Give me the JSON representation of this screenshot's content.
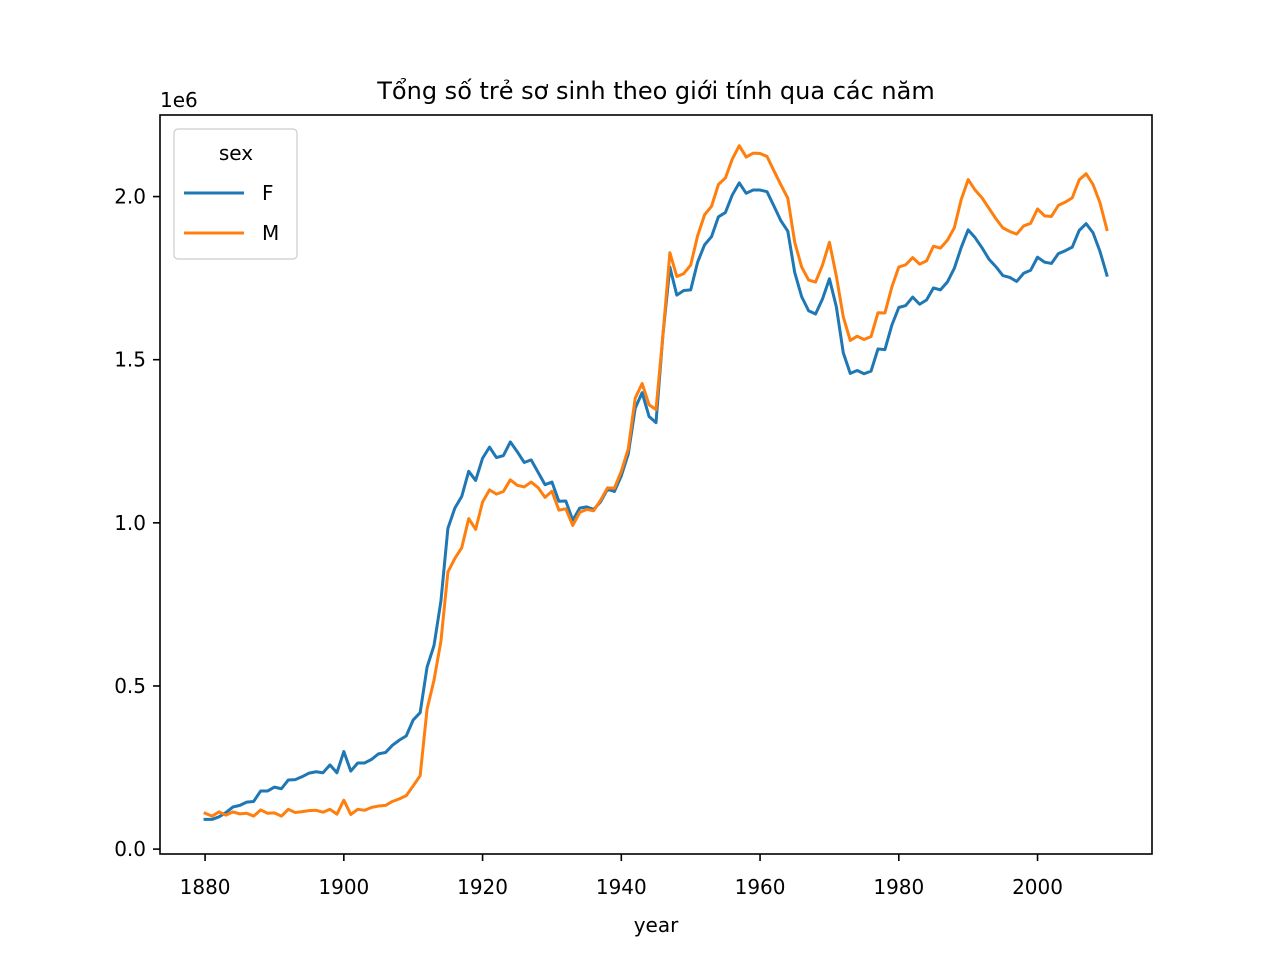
{
  "chart_data": {
    "type": "line",
    "title": "Tổng số trẻ sơ sinh theo giới tính qua các năm",
    "xlabel": "year",
    "ylabel": "",
    "y_offset_label": "1e6",
    "xlim": [
      1873.5,
      2016.5
    ],
    "ylim": [
      -0.015,
      2.25
    ],
    "x_ticks": [
      1880,
      1900,
      1920,
      1940,
      1960,
      1980,
      2000
    ],
    "x_tick_labels": [
      "1880",
      "1900",
      "1920",
      "1940",
      "1960",
      "1980",
      "2000"
    ],
    "y_ticks": [
      0.0,
      0.5,
      1.0,
      1.5,
      2.0
    ],
    "y_tick_labels": [
      "0.0",
      "0.5",
      "1.0",
      "1.5",
      "2.0"
    ],
    "grid": false,
    "legend": {
      "title": "sex",
      "placement": "upper-left"
    },
    "x": [
      1880,
      1881,
      1882,
      1883,
      1884,
      1885,
      1886,
      1887,
      1888,
      1889,
      1890,
      1891,
      1892,
      1893,
      1894,
      1895,
      1896,
      1897,
      1898,
      1899,
      1900,
      1901,
      1902,
      1903,
      1904,
      1905,
      1906,
      1907,
      1908,
      1909,
      1910,
      1911,
      1912,
      1913,
      1914,
      1915,
      1916,
      1917,
      1918,
      1919,
      1920,
      1921,
      1922,
      1923,
      1924,
      1925,
      1926,
      1927,
      1928,
      1929,
      1930,
      1931,
      1932,
      1933,
      1934,
      1935,
      1936,
      1937,
      1938,
      1939,
      1940,
      1941,
      1942,
      1943,
      1944,
      1945,
      1946,
      1947,
      1948,
      1949,
      1950,
      1951,
      1952,
      1953,
      1954,
      1955,
      1956,
      1957,
      1958,
      1959,
      1960,
      1961,
      1962,
      1963,
      1964,
      1965,
      1966,
      1967,
      1968,
      1969,
      1970,
      1971,
      1972,
      1973,
      1974,
      1975,
      1976,
      1977,
      1978,
      1979,
      1980,
      1981,
      1982,
      1983,
      1984,
      1985,
      1986,
      1987,
      1988,
      1989,
      1990,
      1991,
      1992,
      1993,
      1994,
      1995,
      1996,
      1997,
      1998,
      1999,
      2000,
      2001,
      2002,
      2003,
      2004,
      2005,
      2006,
      2007,
      2008,
      2009,
      2010
    ],
    "series": [
      {
        "name": "F",
        "color": "#1f77b4",
        "values": [
          0.091,
          0.091,
          0.099,
          0.112,
          0.129,
          0.134,
          0.144,
          0.146,
          0.178,
          0.178,
          0.19,
          0.185,
          0.212,
          0.213,
          0.222,
          0.233,
          0.237,
          0.234,
          0.258,
          0.234,
          0.299,
          0.239,
          0.264,
          0.264,
          0.275,
          0.292,
          0.296,
          0.318,
          0.334,
          0.347,
          0.396,
          0.418,
          0.558,
          0.624,
          0.761,
          0.983,
          1.045,
          1.081,
          1.158,
          1.13,
          1.198,
          1.232,
          1.2,
          1.206,
          1.248,
          1.218,
          1.185,
          1.193,
          1.155,
          1.117,
          1.125,
          1.066,
          1.067,
          1.008,
          1.045,
          1.049,
          1.041,
          1.064,
          1.103,
          1.096,
          1.144,
          1.211,
          1.351,
          1.399,
          1.326,
          1.307,
          1.577,
          1.784,
          1.698,
          1.712,
          1.714,
          1.799,
          1.852,
          1.877,
          1.938,
          1.951,
          2.005,
          2.042,
          2.01,
          2.02,
          2.02,
          2.015,
          1.971,
          1.926,
          1.894,
          1.767,
          1.693,
          1.65,
          1.64,
          1.686,
          1.748,
          1.662,
          1.521,
          1.458,
          1.467,
          1.457,
          1.465,
          1.533,
          1.531,
          1.606,
          1.66,
          1.666,
          1.692,
          1.67,
          1.683,
          1.72,
          1.714,
          1.738,
          1.78,
          1.844,
          1.898,
          1.874,
          1.843,
          1.808,
          1.785,
          1.758,
          1.752,
          1.74,
          1.765,
          1.774,
          1.814,
          1.799,
          1.795,
          1.825,
          1.834,
          1.845,
          1.896,
          1.917,
          1.889,
          1.832,
          1.759
        ]
      },
      {
        "name": "M",
        "color": "#ff7f0e",
        "values": [
          0.11,
          0.101,
          0.114,
          0.104,
          0.114,
          0.108,
          0.11,
          0.101,
          0.12,
          0.11,
          0.111,
          0.101,
          0.122,
          0.112,
          0.115,
          0.118,
          0.119,
          0.113,
          0.122,
          0.107,
          0.15,
          0.106,
          0.122,
          0.119,
          0.128,
          0.132,
          0.134,
          0.146,
          0.154,
          0.164,
          0.194,
          0.225,
          0.429,
          0.518,
          0.638,
          0.849,
          0.891,
          0.924,
          1.013,
          0.98,
          1.064,
          1.101,
          1.088,
          1.096,
          1.132,
          1.115,
          1.11,
          1.125,
          1.108,
          1.078,
          1.097,
          1.039,
          1.043,
          0.992,
          1.032,
          1.041,
          1.037,
          1.069,
          1.107,
          1.106,
          1.158,
          1.227,
          1.382,
          1.427,
          1.362,
          1.347,
          1.575,
          1.828,
          1.755,
          1.764,
          1.79,
          1.88,
          1.944,
          1.97,
          2.037,
          2.057,
          2.115,
          2.156,
          2.121,
          2.133,
          2.132,
          2.123,
          2.079,
          2.036,
          1.995,
          1.86,
          1.784,
          1.744,
          1.738,
          1.79,
          1.86,
          1.756,
          1.631,
          1.559,
          1.572,
          1.562,
          1.571,
          1.644,
          1.643,
          1.723,
          1.784,
          1.791,
          1.813,
          1.793,
          1.803,
          1.848,
          1.842,
          1.866,
          1.904,
          1.991,
          2.052,
          2.02,
          1.996,
          1.964,
          1.932,
          1.904,
          1.893,
          1.885,
          1.91,
          1.918,
          1.962,
          1.941,
          1.939,
          1.973,
          1.983,
          1.996,
          2.051,
          2.07,
          2.037,
          1.981,
          1.899
        ]
      }
    ]
  }
}
